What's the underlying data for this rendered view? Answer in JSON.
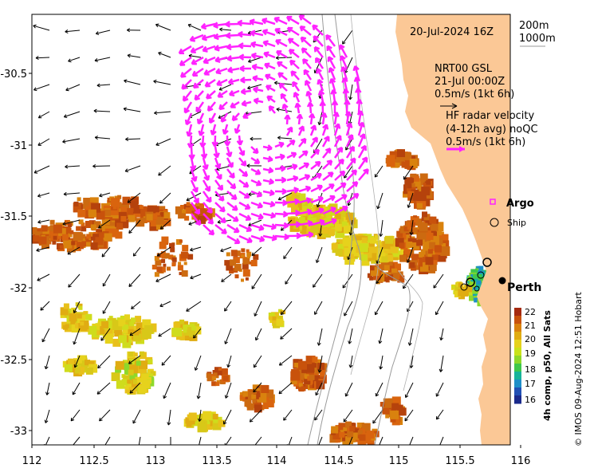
{
  "map": {
    "date_label": "20-Jul-2024 16Z",
    "isobath_legend": [
      "200m",
      "1000m"
    ],
    "model_label": {
      "name": "NRT00 GSL",
      "time": "21-Jul 00:00Z",
      "scale": "0.5m/s (1kt 6h)"
    },
    "radar_label": {
      "line1": "HF radar velocity",
      "line2": "(4-12h avg) noQC",
      "scale": "0.5m/s (1kt 6h)"
    },
    "argo_label": "Argo",
    "ship_label": "Ship",
    "city": "Perth",
    "colorbar": {
      "title": "4h comp, p50, All Sats",
      "ticks": [
        "22",
        "21",
        "20",
        "19",
        "18",
        "17",
        "16"
      ],
      "colors": [
        "#a52a10",
        "#c8520c",
        "#d9820e",
        "#e0ac12",
        "#e6d21c",
        "#c9e21a",
        "#8ed82a",
        "#3fc84a",
        "#17b49a",
        "#1e8fc8",
        "#2150b4",
        "#1a2a8c"
      ]
    },
    "credit": "© IMOS 09-Aug-2024 12:51 Hobart",
    "x_ticks": [
      "112",
      "112.5",
      "113",
      "113.5",
      "114",
      "114.5",
      "115",
      "115.5",
      "116"
    ],
    "y_ticks": [
      "-30.5",
      "-31",
      "-31.5",
      "-32",
      "-32.5",
      "-33"
    ],
    "colors": {
      "land": "#fbc896",
      "radar": "#ff22ff",
      "frame": "#000000",
      "isobath": "#9a9a9a"
    }
  }
}
